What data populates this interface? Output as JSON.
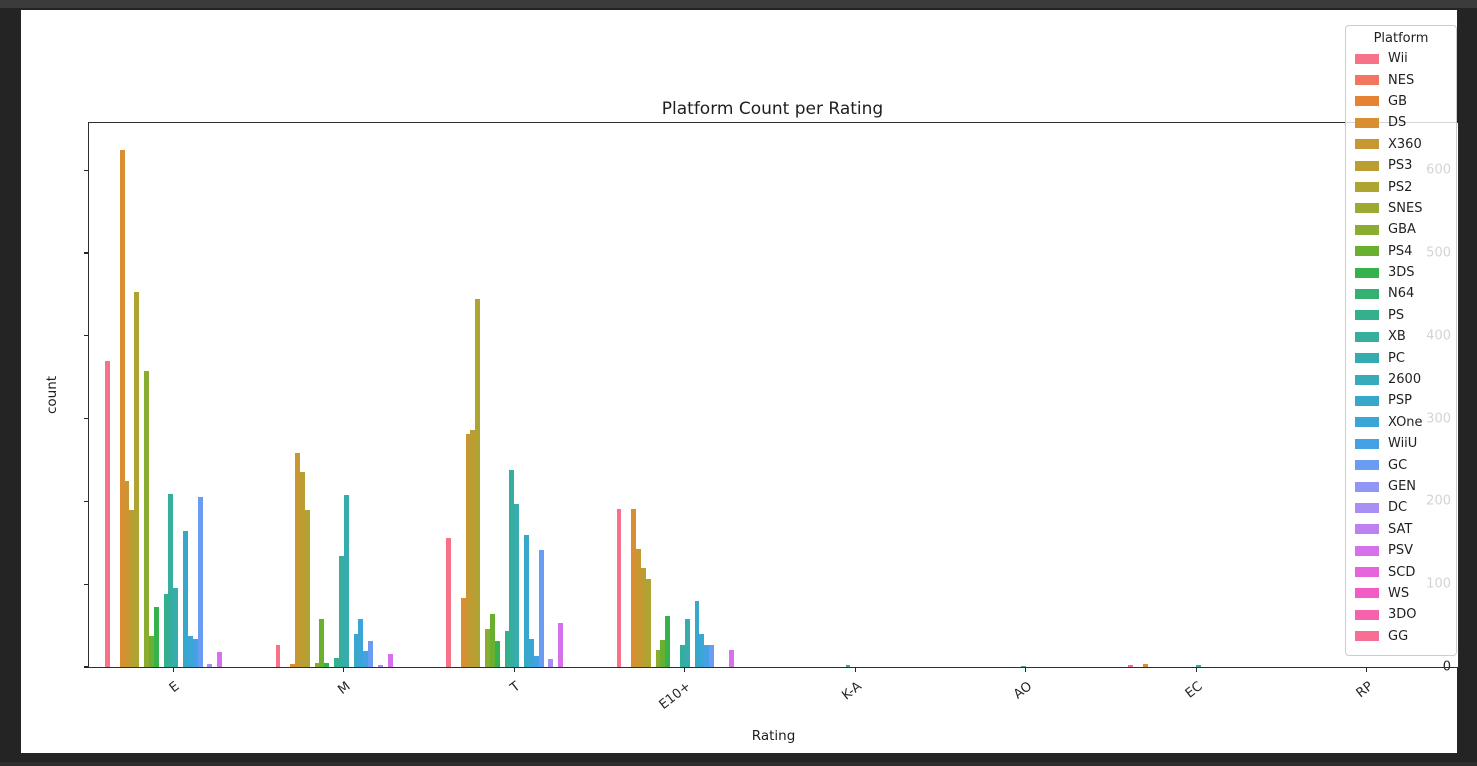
{
  "window": {
    "background": "#242424",
    "top_strip_color": "#3b3b3b",
    "figure_background": "#ffffff"
  },
  "chart": {
    "title": "Platform Count per Rating",
    "xlabel": "Rating",
    "ylabel": "count",
    "legend_title": "Platform"
  },
  "chart_data": {
    "type": "bar",
    "title": "Platform Count per Rating",
    "xlabel": "Rating",
    "ylabel": "count",
    "categories": [
      "E",
      "M",
      "T",
      "E10+",
      "K-A",
      "AO",
      "EC",
      "RP"
    ],
    "yticks": [
      0,
      100,
      200,
      300,
      400,
      500,
      600
    ],
    "ylim": [
      0,
      657
    ],
    "grid": false,
    "legend": {
      "title": "Platform",
      "position": "upper-right"
    },
    "series": [
      {
        "name": "Wii",
        "color": "#f77189",
        "values": [
          370,
          27,
          156,
          191,
          0,
          0,
          2,
          0
        ]
      },
      {
        "name": "NES",
        "color": "#f3765e",
        "values": [
          0,
          0,
          0,
          0,
          0,
          0,
          0,
          0
        ]
      },
      {
        "name": "GB",
        "color": "#e68332",
        "values": [
          0,
          0,
          0,
          0,
          0,
          0,
          0,
          0
        ]
      },
      {
        "name": "DS",
        "color": "#d98e31",
        "values": [
          625,
          4,
          83,
          191,
          0,
          0,
          4,
          0
        ]
      },
      {
        "name": "X360",
        "color": "#c99732",
        "values": [
          225,
          258,
          282,
          143,
          0,
          0,
          0,
          0
        ]
      },
      {
        "name": "PS3",
        "color": "#bb9d31",
        "values": [
          190,
          235,
          286,
          119,
          0,
          0,
          0,
          0
        ]
      },
      {
        "name": "PS2",
        "color": "#aea431",
        "values": [
          453,
          190,
          445,
          106,
          0,
          0,
          0,
          0
        ]
      },
      {
        "name": "SNES",
        "color": "#9da930",
        "values": [
          0,
          0,
          0,
          0,
          0,
          0,
          0,
          0
        ]
      },
      {
        "name": "GBA",
        "color": "#8aad31",
        "values": [
          357,
          5,
          46,
          21,
          0,
          0,
          0,
          0
        ]
      },
      {
        "name": "PS4",
        "color": "#6ab030",
        "values": [
          38,
          58,
          64,
          33,
          0,
          0,
          0,
          0
        ]
      },
      {
        "name": "3DS",
        "color": "#35b24b",
        "values": [
          72,
          5,
          32,
          62,
          0,
          0,
          0,
          0
        ]
      },
      {
        "name": "N64",
        "color": "#33b273",
        "values": [
          0,
          0,
          0,
          0,
          0,
          0,
          0,
          0
        ]
      },
      {
        "name": "PS",
        "color": "#34b08d",
        "values": [
          88,
          11,
          44,
          0,
          3,
          0,
          0,
          0
        ]
      },
      {
        "name": "XB",
        "color": "#35ae9e",
        "values": [
          209,
          134,
          238,
          27,
          0,
          1,
          0,
          0
        ]
      },
      {
        "name": "PC",
        "color": "#36acae",
        "values": [
          95,
          208,
          197,
          58,
          0,
          0,
          3,
          0
        ]
      },
      {
        "name": "2600",
        "color": "#37abbb",
        "values": [
          0,
          0,
          0,
          0,
          0,
          0,
          0,
          0
        ]
      },
      {
        "name": "PSP",
        "color": "#38a8ca",
        "values": [
          164,
          40,
          160,
          80,
          0,
          0,
          0,
          0
        ]
      },
      {
        "name": "XOne",
        "color": "#3aa5d7",
        "values": [
          37,
          58,
          34,
          40,
          0,
          0,
          0,
          0
        ]
      },
      {
        "name": "WiiU",
        "color": "#44a2e4",
        "values": [
          34,
          19,
          13,
          27,
          0,
          0,
          0,
          0
        ]
      },
      {
        "name": "GC",
        "color": "#6a9cf4",
        "values": [
          205,
          31,
          141,
          27,
          0,
          0,
          0,
          0
        ]
      },
      {
        "name": "GEN",
        "color": "#9195f4",
        "values": [
          0,
          0,
          0,
          0,
          0,
          0,
          0,
          0
        ]
      },
      {
        "name": "DC",
        "color": "#a98ef4",
        "values": [
          4,
          3,
          10,
          0,
          0,
          0,
          0,
          0
        ]
      },
      {
        "name": "SAT",
        "color": "#c081f0",
        "values": [
          0,
          0,
          0,
          0,
          0,
          0,
          0,
          0
        ]
      },
      {
        "name": "PSV",
        "color": "#d572eb",
        "values": [
          18,
          16,
          53,
          21,
          0,
          0,
          0,
          0
        ]
      },
      {
        "name": "SCD",
        "color": "#e765dc",
        "values": [
          0,
          0,
          0,
          0,
          0,
          0,
          0,
          0
        ]
      },
      {
        "name": "WS",
        "color": "#f15cc5",
        "values": [
          0,
          0,
          0,
          0,
          0,
          0,
          0,
          0
        ]
      },
      {
        "name": "3DO",
        "color": "#f563ad",
        "values": [
          0,
          0,
          0,
          0,
          0,
          0,
          0,
          0
        ]
      },
      {
        "name": "GG",
        "color": "#f76d94",
        "values": [
          0,
          0,
          0,
          0,
          0,
          0,
          0,
          0
        ]
      }
    ]
  }
}
